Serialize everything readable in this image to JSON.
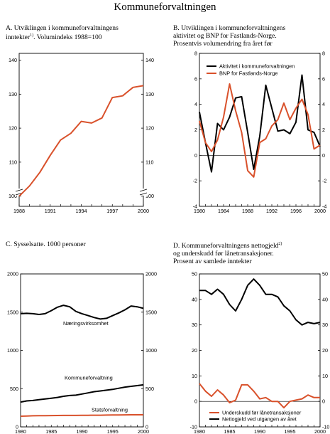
{
  "page_title": "Kommuneforvaltningen",
  "chart_data": [
    {
      "id": "A",
      "type": "line",
      "title_lines": [
        "A.  Utviklingen i kommuneforvaltningens",
        "inntekter",
        ". Volumindeks 1988=100"
      ],
      "title_sup": "1)",
      "x": [
        1988,
        1989,
        1990,
        1991,
        1992,
        1993,
        1994,
        1995,
        1996,
        1997,
        1998,
        1999,
        2000
      ],
      "series": [
        {
          "color": "#d9512b",
          "values": [
            100,
            103,
            107,
            112,
            116.5,
            118.5,
            122,
            121.5,
            123,
            129,
            129.5,
            132,
            132.5
          ]
        }
      ],
      "xticks": [
        1988,
        1991,
        1994,
        1997,
        2000
      ],
      "xlim": [
        1988,
        2000
      ],
      "ylim": [
        97,
        142
      ],
      "yticks": [
        100,
        110,
        120,
        130,
        140
      ],
      "axis_break": true
    },
    {
      "id": "B",
      "type": "line",
      "title_lines": [
        "B.  Utviklingen i kommuneforvaltningens",
        "aktivitet og BNP for Fastlands-Norge.",
        "Prosentvis volumendring fra året før"
      ],
      "x": [
        1980,
        1981,
        1982,
        1983,
        1984,
        1985,
        1986,
        1987,
        1988,
        1989,
        1990,
        1991,
        1992,
        1993,
        1994,
        1995,
        1996,
        1997,
        1998,
        1999,
        2000
      ],
      "series": [
        {
          "name": "Aktivitet i kommuneforvaltningen",
          "color": "#000000",
          "values": [
            3.4,
            1.0,
            -1.3,
            2.5,
            2.0,
            3.0,
            4.5,
            4.6,
            1.8,
            -1.1,
            1.5,
            5.5,
            3.7,
            1.9,
            2.0,
            1.7,
            2.6,
            6.3,
            2.0,
            1.8,
            0.7
          ]
        },
        {
          "name": "BNP for Fastlands-Norge",
          "color": "#d9512b",
          "values": [
            2.7,
            1.0,
            0.3,
            1.2,
            3.0,
            5.6,
            3.5,
            1.8,
            -1.2,
            -1.7,
            1.0,
            1.3,
            2.3,
            2.8,
            4.1,
            2.8,
            3.7,
            4.4,
            3.2,
            0.5,
            0.8
          ]
        }
      ],
      "xticks": [
        1980,
        1984,
        1988,
        1992,
        1996,
        2000
      ],
      "xlim": [
        1980,
        2000
      ],
      "ylim": [
        -4,
        8
      ],
      "yticks": [
        -4,
        -2,
        0,
        2,
        4,
        6,
        8
      ],
      "legend": "top-left"
    },
    {
      "id": "C",
      "type": "line",
      "title_lines": [
        "C.  Sysselsatte. 1000 personer"
      ],
      "x": [
        1980,
        1981,
        1982,
        1983,
        1984,
        1985,
        1986,
        1987,
        1988,
        1989,
        1990,
        1991,
        1992,
        1993,
        1994,
        1995,
        1996,
        1997,
        1998,
        1999,
        2000
      ],
      "series": [
        {
          "name": "Næringsvirksomhet",
          "color": "#000000",
          "values": [
            1480,
            1485,
            1480,
            1470,
            1480,
            1520,
            1565,
            1590,
            1570,
            1510,
            1480,
            1455,
            1430,
            1410,
            1420,
            1455,
            1490,
            1530,
            1580,
            1570,
            1550
          ]
        },
        {
          "name": "Kommuneforvaltning",
          "color": "#000000",
          "values": [
            325,
            340,
            345,
            355,
            365,
            375,
            385,
            400,
            410,
            415,
            430,
            445,
            460,
            470,
            480,
            490,
            505,
            520,
            530,
            540,
            550
          ]
        },
        {
          "name": "Statsforvaltning",
          "color": "#d9512b",
          "values": [
            140,
            142,
            145,
            146,
            147,
            148,
            149,
            150,
            150,
            150,
            151,
            152,
            153,
            153,
            154,
            155,
            156,
            157,
            158,
            158,
            158
          ]
        }
      ],
      "xticks": [
        1980,
        1985,
        1990,
        1995,
        2000
      ],
      "xlim": [
        1980,
        2000
      ],
      "ylim": [
        0,
        2000
      ],
      "yticks": [
        0,
        500,
        1000,
        1500,
        2000
      ]
    },
    {
      "id": "D",
      "type": "line",
      "title_lines": [
        "D.  Kommuneforvaltningens nettogjeld",
        "og underskudd før lånetransaksjoner.",
        "Prosent av samlede inntekter"
      ],
      "title_sup": "2)",
      "x": [
        1980,
        1981,
        1982,
        1983,
        1984,
        1985,
        1986,
        1987,
        1988,
        1989,
        1990,
        1991,
        1992,
        1993,
        1994,
        1995,
        1996,
        1997,
        1998,
        1999,
        2000
      ],
      "series": [
        {
          "name": "Underskudd før lånetransaksjoner",
          "color": "#d9512b",
          "values": [
            7.0,
            4.0,
            2.0,
            4.5,
            2.5,
            -0.5,
            0.5,
            6.5,
            6.5,
            4.0,
            1.0,
            1.5,
            0.0,
            0.0,
            -2.5,
            0.0,
            0.5,
            1.0,
            2.5,
            1.5,
            1.5
          ]
        },
        {
          "name": "Nettogjeld ved utgangen av året",
          "color": "#000000",
          "values": [
            43.5,
            43.5,
            42.0,
            44.0,
            42.0,
            38.0,
            35.5,
            40.0,
            45.5,
            48.0,
            45.5,
            42.0,
            42.0,
            41.0,
            37.5,
            35.5,
            32.0,
            30.0,
            31.0,
            30.5,
            31.0
          ]
        }
      ],
      "xticks": [
        1980,
        1985,
        1990,
        1995,
        2000
      ],
      "xlim": [
        1980,
        2000
      ],
      "ylim": [
        -10,
        50
      ],
      "yticks": [
        -10,
        0,
        10,
        20,
        30,
        40,
        50
      ],
      "legend": "bottom-left"
    }
  ]
}
